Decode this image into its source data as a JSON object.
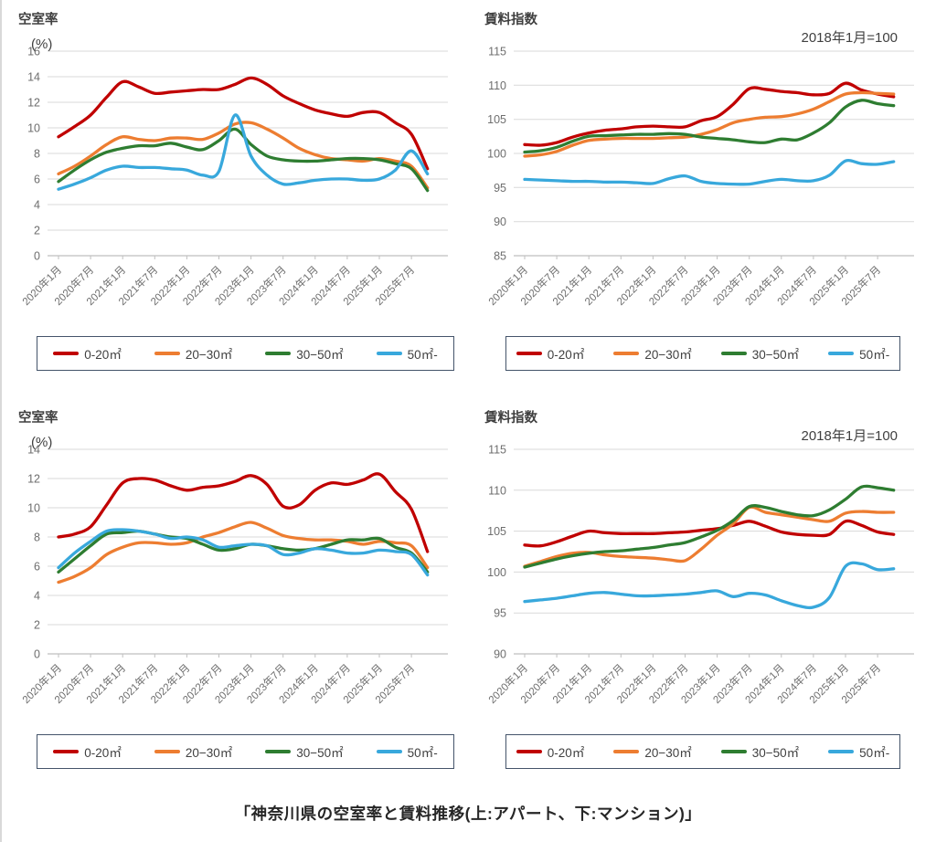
{
  "caption": "「神奈川県の空室率と賃料推移(上:アパート、下:マンション)」",
  "colors": {
    "series": [
      "#c00000",
      "#ed7d31",
      "#2e7d31",
      "#38a8dc"
    ],
    "gridline": "#d9d9d9",
    "axis_line": "#bfbfbf",
    "axis_text": "#6e6e6e",
    "title_text": "#3f3f3f",
    "legend_border": "#44546a"
  },
  "legend": {
    "labels": [
      "0-20㎡",
      "20−30㎡",
      "30−50㎡",
      "50㎡-"
    ]
  },
  "chart_data": [
    {
      "type": "line",
      "title": "空室率",
      "unit": "(%)",
      "ylim": [
        0,
        16
      ],
      "ytick_step": 2,
      "grid": true,
      "legend_position": "bottom",
      "x_tick_angle_deg": -45,
      "x_tick_labels": [
        "2020年1月",
        "2020年7月",
        "2021年1月",
        "2021年7月",
        "2022年1月",
        "2022年7月",
        "2023年1月",
        "2023年7月",
        "2024年1月",
        "2024年7月",
        "2025年1月",
        "2025年7月"
      ],
      "x": [
        "2020年1月",
        "2020年4月",
        "2020年7月",
        "2020年10月",
        "2021年1月",
        "2021年4月",
        "2021年7月",
        "2021年10月",
        "2022年1月",
        "2022年4月",
        "2022年7月",
        "2022年10月",
        "2023年1月",
        "2023年4月",
        "2023年7月",
        "2023年10月",
        "2024年1月",
        "2024年4月",
        "2024年7月",
        "2024年10月",
        "2025年1月",
        "2025年4月",
        "2025年7月",
        "2025年10月"
      ],
      "series": [
        {
          "name": "0-20㎡",
          "color": "#c00000",
          "values": [
            9.3,
            10.1,
            11.0,
            12.4,
            13.6,
            13.2,
            12.7,
            12.8,
            12.9,
            13.0,
            13.0,
            13.4,
            13.9,
            13.4,
            12.5,
            11.9,
            11.4,
            11.1,
            10.9,
            11.2,
            11.2,
            10.4,
            9.5,
            6.8
          ]
        },
        {
          "name": "20−30㎡",
          "color": "#ed7d31",
          "values": [
            6.4,
            7.0,
            7.8,
            8.7,
            9.3,
            9.1,
            9.0,
            9.2,
            9.2,
            9.1,
            9.6,
            10.3,
            10.4,
            9.9,
            9.2,
            8.4,
            7.9,
            7.6,
            7.5,
            7.4,
            7.6,
            7.4,
            7.0,
            5.3
          ]
        },
        {
          "name": "30−50㎡",
          "color": "#2e7d31",
          "values": [
            5.8,
            6.7,
            7.5,
            8.1,
            8.4,
            8.6,
            8.6,
            8.8,
            8.5,
            8.3,
            9.0,
            9.9,
            8.7,
            7.8,
            7.5,
            7.4,
            7.4,
            7.5,
            7.6,
            7.6,
            7.5,
            7.2,
            6.8,
            5.1
          ]
        },
        {
          "name": "50㎡-",
          "color": "#38a8dc",
          "values": [
            5.2,
            5.6,
            6.1,
            6.7,
            7.0,
            6.9,
            6.9,
            6.8,
            6.7,
            6.3,
            6.6,
            11.0,
            7.8,
            6.3,
            5.6,
            5.7,
            5.9,
            6.0,
            6.0,
            5.9,
            6.0,
            6.7,
            8.2,
            6.4
          ]
        }
      ]
    },
    {
      "type": "line",
      "title": "賃料指数",
      "subtitle": "2018年1月=100",
      "ylim": [
        85,
        115
      ],
      "ytick_step": 5,
      "grid": true,
      "legend_position": "bottom",
      "x_tick_angle_deg": -45,
      "x_tick_labels": [
        "2020年1月",
        "2020年7月",
        "2021年1月",
        "2021年7月",
        "2022年1月",
        "2022年7月",
        "2023年1月",
        "2023年7月",
        "2024年1月",
        "2024年7月",
        "2025年1月",
        "2025年7月"
      ],
      "x": [
        "2020年1月",
        "2020年4月",
        "2020年7月",
        "2020年10月",
        "2021年1月",
        "2021年4月",
        "2021年7月",
        "2021年10月",
        "2022年1月",
        "2022年4月",
        "2022年7月",
        "2022年10月",
        "2023年1月",
        "2023年4月",
        "2023年7月",
        "2023年10月",
        "2024年1月",
        "2024年4月",
        "2024年7月",
        "2024年10月",
        "2025年1月",
        "2025年4月",
        "2025年7月",
        "2025年10月"
      ],
      "series": [
        {
          "name": "0-20㎡",
          "color": "#c00000",
          "values": [
            101.3,
            101.2,
            101.6,
            102.4,
            103.0,
            103.4,
            103.6,
            103.9,
            104.0,
            103.9,
            103.9,
            104.8,
            105.4,
            107.2,
            109.5,
            109.4,
            109.1,
            108.9,
            108.6,
            108.8,
            110.3,
            109.3,
            108.7,
            108.3
          ]
        },
        {
          "name": "20−30㎡",
          "color": "#ed7d31",
          "values": [
            99.6,
            99.8,
            100.3,
            101.2,
            101.9,
            102.1,
            102.2,
            102.2,
            102.2,
            102.3,
            102.4,
            102.8,
            103.5,
            104.5,
            105.0,
            105.3,
            105.4,
            105.8,
            106.5,
            107.6,
            108.7,
            108.9,
            108.8,
            108.7
          ]
        },
        {
          "name": "30−50㎡",
          "color": "#2e7d31",
          "values": [
            100.2,
            100.4,
            100.9,
            101.8,
            102.5,
            102.6,
            102.7,
            102.8,
            102.8,
            102.9,
            102.8,
            102.4,
            102.2,
            102.0,
            101.7,
            101.6,
            102.1,
            102.0,
            103.0,
            104.5,
            106.8,
            107.8,
            107.3,
            107.0
          ]
        },
        {
          "name": "50㎡-",
          "color": "#38a8dc",
          "values": [
            96.2,
            96.1,
            96.0,
            95.9,
            95.9,
            95.8,
            95.8,
            95.7,
            95.6,
            96.3,
            96.7,
            95.9,
            95.6,
            95.5,
            95.5,
            95.9,
            96.2,
            96.0,
            96.0,
            96.8,
            98.9,
            98.5,
            98.4,
            98.8
          ]
        }
      ]
    },
    {
      "type": "line",
      "title": "空室率",
      "unit": "(%)",
      "ylim": [
        0,
        14
      ],
      "ytick_step": 2,
      "grid": true,
      "legend_position": "bottom",
      "x_tick_angle_deg": -45,
      "x_tick_labels": [
        "2020年1月",
        "2020年7月",
        "2021年1月",
        "2021年7月",
        "2022年1月",
        "2022年7月",
        "2023年1月",
        "2023年7月",
        "2024年1月",
        "2024年7月",
        "2025年1月",
        "2025年7月"
      ],
      "x": [
        "2020年1月",
        "2020年4月",
        "2020年7月",
        "2020年10月",
        "2021年1月",
        "2021年4月",
        "2021年7月",
        "2021年10月",
        "2022年1月",
        "2022年4月",
        "2022年7月",
        "2022年10月",
        "2023年1月",
        "2023年4月",
        "2023年7月",
        "2023年10月",
        "2024年1月",
        "2024年4月",
        "2024年7月",
        "2024年10月",
        "2025年1月",
        "2025年4月",
        "2025年7月",
        "2025年10月"
      ],
      "series": [
        {
          "name": "0-20㎡",
          "color": "#c00000",
          "values": [
            8.0,
            8.2,
            8.7,
            10.2,
            11.7,
            12.0,
            11.9,
            11.5,
            11.2,
            11.4,
            11.5,
            11.8,
            12.2,
            11.6,
            10.1,
            10.2,
            11.2,
            11.7,
            11.6,
            11.9,
            12.3,
            11.1,
            9.9,
            7.0
          ]
        },
        {
          "name": "20−30㎡",
          "color": "#ed7d31",
          "values": [
            4.9,
            5.3,
            5.9,
            6.8,
            7.3,
            7.6,
            7.6,
            7.5,
            7.6,
            8.0,
            8.3,
            8.7,
            9.0,
            8.6,
            8.1,
            7.9,
            7.8,
            7.8,
            7.7,
            7.5,
            7.7,
            7.6,
            7.4,
            5.9
          ]
        },
        {
          "name": "30−50㎡",
          "color": "#2e7d31",
          "values": [
            5.6,
            6.5,
            7.4,
            8.2,
            8.3,
            8.4,
            8.2,
            8.0,
            7.9,
            7.5,
            7.1,
            7.2,
            7.5,
            7.4,
            7.2,
            7.1,
            7.2,
            7.5,
            7.8,
            7.8,
            7.9,
            7.3,
            6.9,
            5.6
          ]
        },
        {
          "name": "50㎡-",
          "color": "#38a8dc",
          "values": [
            5.9,
            6.9,
            7.7,
            8.4,
            8.5,
            8.4,
            8.2,
            7.9,
            8.0,
            7.8,
            7.3,
            7.4,
            7.5,
            7.4,
            6.8,
            6.9,
            7.2,
            7.1,
            6.9,
            6.9,
            7.1,
            7.0,
            6.8,
            5.4
          ]
        }
      ]
    },
    {
      "type": "line",
      "title": "賃料指数",
      "subtitle": "2018年1月=100",
      "ylim": [
        90,
        115
      ],
      "ytick_step": 5,
      "grid": true,
      "legend_position": "bottom",
      "x_tick_angle_deg": -45,
      "x_tick_labels": [
        "2020年1月",
        "2020年7月",
        "2021年1月",
        "2021年7月",
        "2022年1月",
        "2022年7月",
        "2023年1月",
        "2023年7月",
        "2024年1月",
        "2024年7月",
        "2025年1月",
        "2025年7月"
      ],
      "x": [
        "2020年1月",
        "2020年4月",
        "2020年7月",
        "2020年10月",
        "2021年1月",
        "2021年4月",
        "2021年7月",
        "2021年10月",
        "2022年1月",
        "2022年4月",
        "2022年7月",
        "2022年10月",
        "2023年1月",
        "2023年4月",
        "2023年7月",
        "2023年10月",
        "2024年1月",
        "2024年4月",
        "2024年7月",
        "2024年10月",
        "2025年1月",
        "2025年4月",
        "2025年7月",
        "2025年10月"
      ],
      "series": [
        {
          "name": "0-20㎡",
          "color": "#c00000",
          "values": [
            103.3,
            103.2,
            103.7,
            104.4,
            105.0,
            104.8,
            104.7,
            104.7,
            104.7,
            104.8,
            104.9,
            105.1,
            105.3,
            105.7,
            106.2,
            105.6,
            104.9,
            104.6,
            104.5,
            104.6,
            106.2,
            105.7,
            104.9,
            104.6
          ]
        },
        {
          "name": "20−30㎡",
          "color": "#ed7d31",
          "values": [
            100.7,
            101.3,
            101.9,
            102.3,
            102.4,
            102.1,
            101.9,
            101.8,
            101.7,
            101.5,
            101.4,
            102.8,
            104.5,
            105.9,
            107.9,
            107.3,
            107.0,
            106.7,
            106.4,
            106.2,
            107.2,
            107.4,
            107.3,
            107.3
          ]
        },
        {
          "name": "30−50㎡",
          "color": "#2e7d31",
          "values": [
            100.6,
            101.1,
            101.6,
            102.0,
            102.3,
            102.5,
            102.6,
            102.8,
            103.0,
            103.3,
            103.6,
            104.3,
            105.1,
            106.3,
            108.0,
            107.9,
            107.4,
            107.0,
            106.9,
            107.6,
            108.9,
            110.4,
            110.3,
            110.0
          ]
        },
        {
          "name": "50㎡-",
          "color": "#38a8dc",
          "values": [
            96.4,
            96.6,
            96.8,
            97.1,
            97.4,
            97.5,
            97.3,
            97.1,
            97.1,
            97.2,
            97.3,
            97.5,
            97.7,
            97.0,
            97.4,
            97.2,
            96.5,
            95.9,
            95.7,
            96.9,
            100.7,
            101.0,
            100.3,
            100.4
          ]
        }
      ]
    }
  ]
}
